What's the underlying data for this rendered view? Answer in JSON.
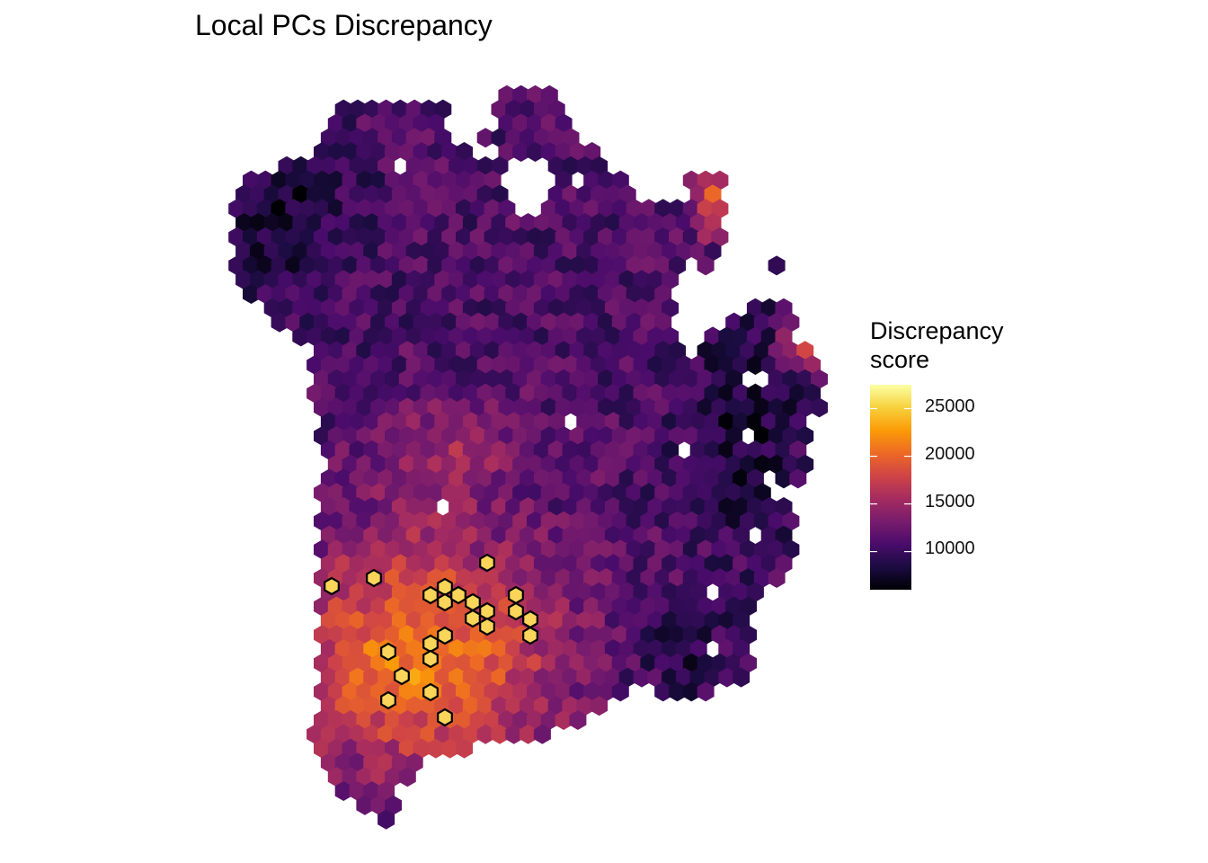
{
  "chart_data": {
    "type": "heatmap",
    "title": "Local PCs Discrepancy",
    "xlabel": "",
    "ylabel": "",
    "grid": false,
    "colormap": "inferno",
    "colors": {
      "outline": "#000000",
      "inferno_stops": [
        "#000004",
        "#1b0c41",
        "#4a0c6b",
        "#781c6d",
        "#a52c60",
        "#cf4446",
        "#ed6925",
        "#fb9b06",
        "#f7d13d",
        "#fcffa4"
      ]
    },
    "legend": {
      "title_line1": "Discrepancy",
      "title_line2": "score",
      "placement": "right",
      "min": 6000,
      "max": 27500,
      "ticks": [
        10000,
        15000,
        20000,
        25000
      ],
      "tick_labels": [
        "10000",
        "15000",
        "20000",
        "25000"
      ]
    },
    "highlighted_spots_count": 23
  }
}
